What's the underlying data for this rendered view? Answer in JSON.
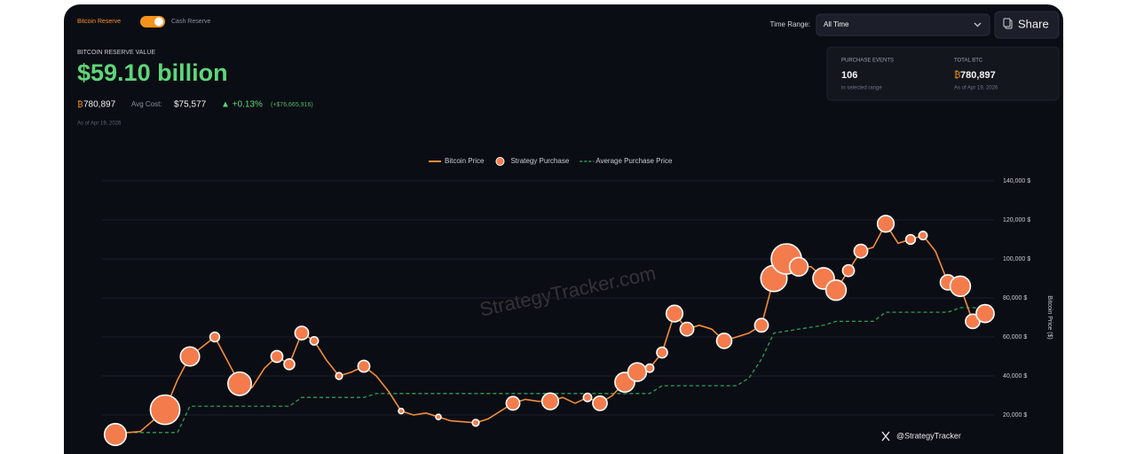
{
  "header": {
    "toggle_left": "Bitcoin Reserve",
    "toggle_right": "Cash Reserve",
    "time_range_label": "Time Range:",
    "time_range_value": "All Time",
    "share": "Share"
  },
  "summary": {
    "title": "BITCOIN RESERVE VALUE",
    "value": "$59.10 billion",
    "btc_symbol": "₿",
    "btc_amount": "780,897",
    "avg_cost_label": "Avg Cost:",
    "avg_cost": "$75,577",
    "change": "▲ +0.13%",
    "change_amount": "(+$76,665,916)",
    "as_of": "As of Apr 19, 2026"
  },
  "stats": {
    "purchase_events_label": "PURCHASE EVENTS",
    "purchase_events": "106",
    "purchase_events_note": "in selected range",
    "total_btc_label": "TOTAL BTC",
    "total_btc_symbol": "₿",
    "total_btc": "780,897",
    "total_btc_note": "As of Apr 19, 2026"
  },
  "watermark": "StrategyTracker.com",
  "credit": "@StrategyTracker",
  "chart_data": {
    "type": "line",
    "y_label": "Bitcoin Price ($)",
    "ylim": [
      0,
      140000
    ],
    "yticks": [
      {
        "value": 20000,
        "label": "20,000 $"
      },
      {
        "value": 40000,
        "label": "40,000 $"
      },
      {
        "value": 60000,
        "label": "60,000 $"
      },
      {
        "value": 80000,
        "label": "80,000 $"
      },
      {
        "value": 100000,
        "label": "100,000 $"
      },
      {
        "value": 120000,
        "label": "120,000 $"
      },
      {
        "value": 140000,
        "label": "140,000 $"
      }
    ],
    "grid": true,
    "legend": "top",
    "categories": [
      null,
      null,
      null,
      null,
      null,
      null,
      null,
      null,
      null,
      null,
      null,
      null,
      null,
      null,
      null,
      null,
      null,
      null,
      null,
      null,
      null,
      null,
      null,
      null,
      null,
      null,
      null,
      null,
      null,
      null,
      null,
      null,
      null,
      null,
      null,
      null,
      null,
      null,
      null,
      null,
      null,
      null,
      null,
      null,
      null,
      null,
      null,
      null,
      null,
      null,
      null,
      null,
      null,
      null,
      null,
      null,
      null,
      null,
      null,
      null,
      null,
      null,
      null,
      null,
      null,
      null,
      null,
      null,
      null,
      null,
      null
    ],
    "series": [
      {
        "name": "Bitcoin Price",
        "type": "line",
        "color": "#f28c38",
        "values": [
          10000,
          11000,
          11500,
          17000,
          22700,
          38000,
          50000,
          55000,
          60000,
          48000,
          36000,
          34000,
          44000,
          50000,
          46000,
          62000,
          58000,
          48000,
          40000,
          42000,
          45000,
          40000,
          32000,
          22000,
          20000,
          21000,
          19000,
          17000,
          16500,
          16000,
          18000,
          22000,
          26000,
          28000,
          27000,
          27000,
          29000,
          26000,
          29000,
          26000,
          30000,
          36800,
          42000,
          44000,
          52000,
          72000,
          64000,
          66000,
          64000,
          58000,
          60000,
          62000,
          66000,
          90000,
          100000,
          96000,
          96000,
          90000,
          84000,
          94000,
          104000,
          106000,
          118000,
          108000,
          110000,
          112000,
          104000,
          88000,
          86000,
          68000,
          72000
        ]
      },
      {
        "name": "Strategy Purchase",
        "type": "bubble",
        "color": "#f47c4c",
        "values": [
          10000,
          null,
          null,
          null,
          22700,
          null,
          50000,
          null,
          60000,
          null,
          36000,
          null,
          null,
          50000,
          46000,
          62000,
          58000,
          null,
          40000,
          null,
          45000,
          null,
          null,
          22000,
          null,
          null,
          19000,
          null,
          null,
          16000,
          null,
          null,
          26000,
          null,
          null,
          27000,
          null,
          null,
          29000,
          26000,
          null,
          36800,
          42000,
          44000,
          52000,
          72000,
          64000,
          null,
          null,
          58000,
          null,
          null,
          66000,
          90000,
          100000,
          96000,
          null,
          90000,
          84000,
          94000,
          104000,
          null,
          118000,
          null,
          110000,
          112000,
          null,
          88000,
          86000,
          68000,
          72000
        ],
        "sizes": [
          21000,
          null,
          null,
          null,
          38000,
          null,
          16000,
          null,
          4000,
          null,
          24000,
          null,
          null,
          6000,
          5000,
          8000,
          3000,
          null,
          2000,
          null,
          6000,
          null,
          null,
          1000,
          null,
          null,
          1000,
          null,
          null,
          2000,
          null,
          null,
          8000,
          null,
          null,
          12000,
          null,
          null,
          3000,
          9000,
          null,
          17000,
          15000,
          3000,
          5000,
          12000,
          8000,
          null,
          null,
          10000,
          null,
          null,
          8000,
          30000,
          40000,
          15000,
          null,
          20000,
          18000,
          6000,
          8000,
          null,
          12000,
          null,
          4000,
          3000,
          null,
          10000,
          18000,
          9000,
          14000
        ]
      },
      {
        "name": "Average Purchase Price",
        "type": "dashed",
        "color": "#2e9d57",
        "values": [
          11000,
          11000,
          11000,
          11000,
          11000,
          11000,
          24500,
          24500,
          24500,
          24500,
          24500,
          24500,
          24500,
          24500,
          24500,
          29000,
          29000,
          29000,
          29000,
          29000,
          29000,
          31000,
          31000,
          31000,
          31000,
          31000,
          31000,
          31000,
          31000,
          31000,
          31000,
          31000,
          31000,
          31000,
          31000,
          31000,
          31000,
          31000,
          31000,
          31000,
          31000,
          31000,
          31000,
          31000,
          35000,
          35000,
          35000,
          35000,
          35000,
          35000,
          35000,
          39000,
          48600,
          62000,
          63000,
          64000,
          65000,
          66000,
          68000,
          68000,
          68000,
          68000,
          72700,
          72700,
          72700,
          72700,
          72700,
          72700,
          75000,
          75000,
          75000
        ]
      }
    ]
  }
}
